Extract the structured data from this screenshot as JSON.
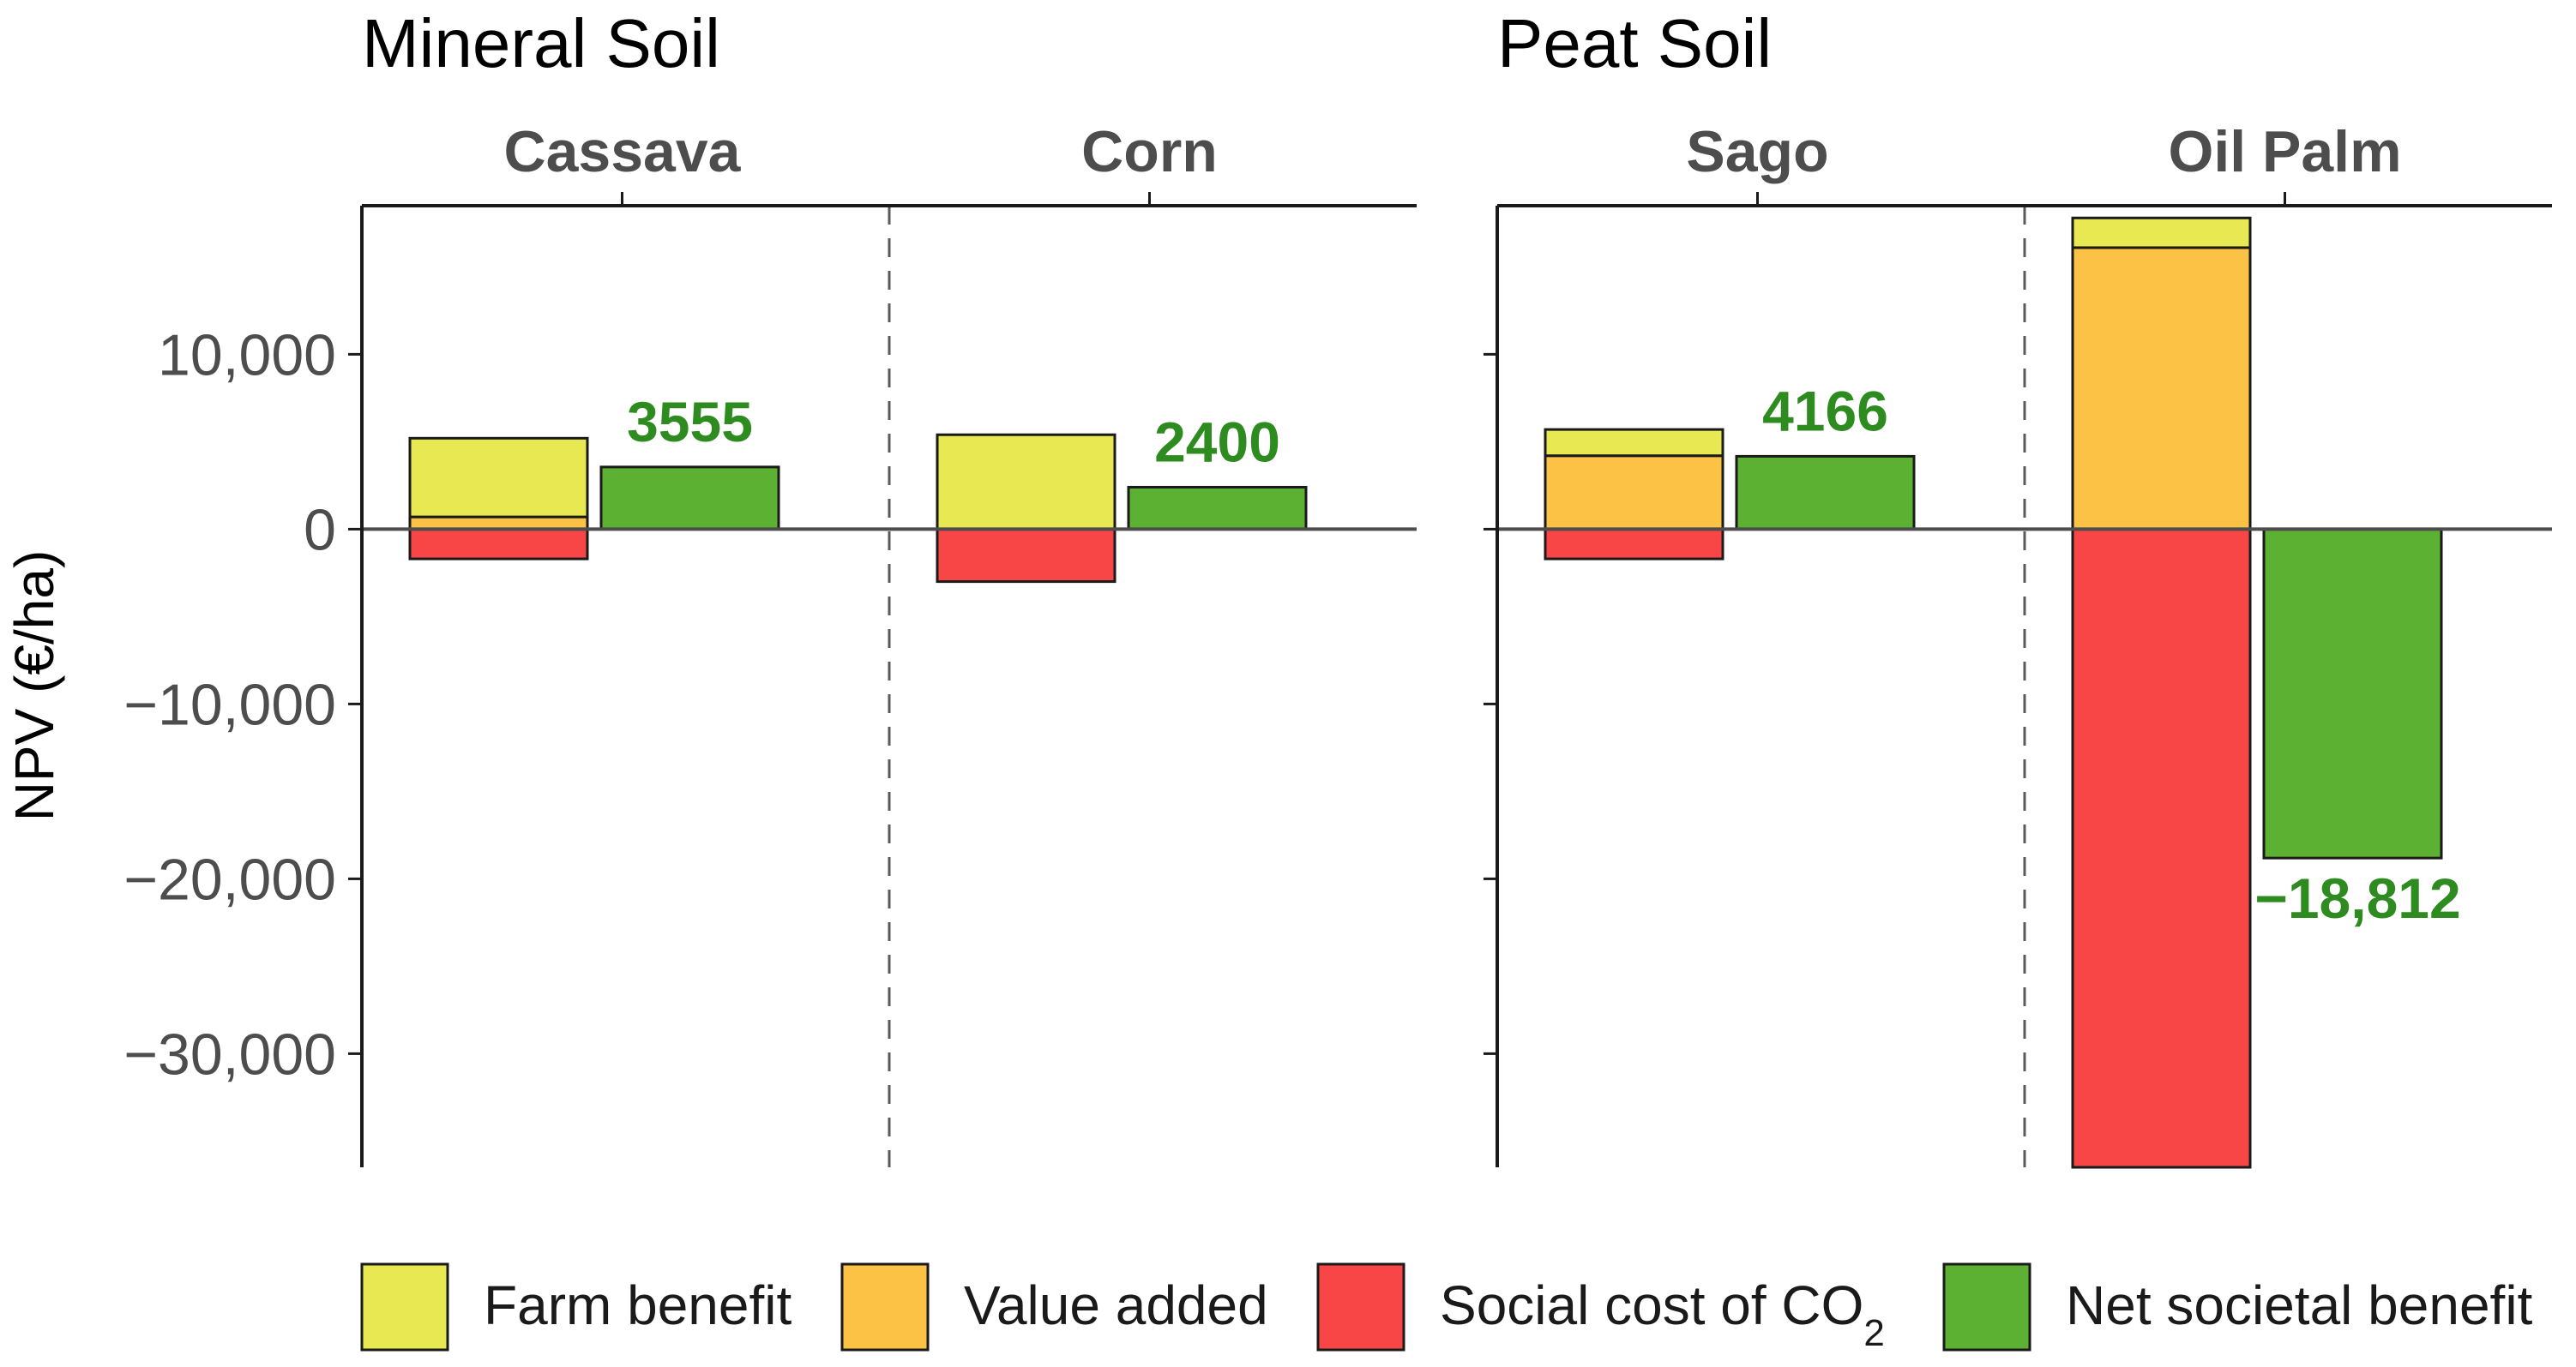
{
  "chart_data": {
    "type": "bar",
    "ylabel": "NPV (€/ha)",
    "ylim": [
      -36500,
      18500
    ],
    "yticks": [
      10000,
      0,
      -10000,
      -20000,
      -30000
    ],
    "ytick_labels": [
      "10,000",
      "0",
      "−10,000",
      "−20,000",
      "−30,000"
    ],
    "series_colors": {
      "farm_benefit": "#e8e853",
      "value_added": "#fcc245",
      "social_cost_co2": "#f84545",
      "net_societal_benefit": "#5cb132"
    },
    "panels": [
      {
        "title": "Mineral Soil",
        "crops": [
          {
            "name": "Cassava",
            "farm_benefit": 4500,
            "value_added": 700,
            "social_cost_co2": -1700,
            "net_societal_benefit": 3555,
            "net_label": "3555"
          },
          {
            "name": "Corn",
            "farm_benefit": 5400,
            "value_added": 0,
            "social_cost_co2": -3000,
            "net_societal_benefit": 2400,
            "net_label": "2400"
          }
        ]
      },
      {
        "title": "Peat Soil",
        "crops": [
          {
            "name": "Sago",
            "farm_benefit": 1500,
            "value_added": 4200,
            "social_cost_co2": -1700,
            "net_societal_benefit": 4166,
            "net_label": "4166"
          },
          {
            "name": "Oil Palm",
            "farm_benefit": 1700,
            "value_added": 16100,
            "social_cost_co2": -36500,
            "net_societal_benefit": -18812,
            "net_label": "−18,812"
          }
        ]
      }
    ],
    "legend": {
      "position": "bottom",
      "entries": [
        {
          "key": "farm_benefit",
          "label": "Farm benefit"
        },
        {
          "key": "value_added",
          "label": "Value added"
        },
        {
          "key": "social_cost_co2",
          "label": "Social cost of CO",
          "subscript": "2"
        },
        {
          "key": "net_societal_benefit",
          "label": "Net societal benefit"
        }
      ]
    },
    "label_color": "#2e8b1f"
  }
}
